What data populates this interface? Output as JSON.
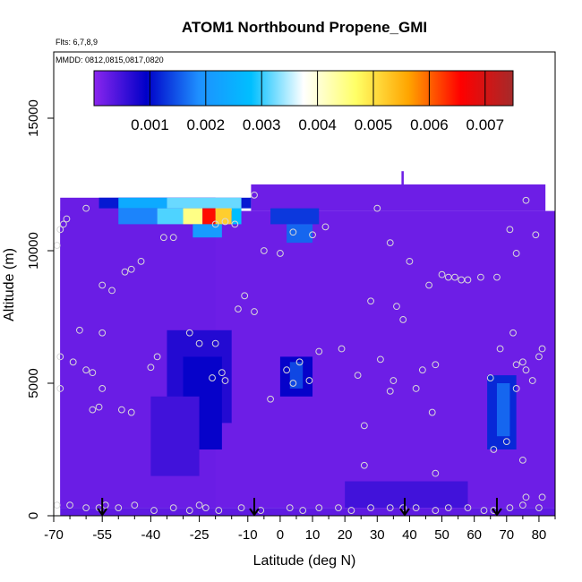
{
  "chart_data": {
    "type": "heatmap",
    "title": "ATOM1 Northbound Propene_GMI",
    "notes": [
      "Flts: 6,7,8,9",
      "MMDD: 0812,0815,0817,0820"
    ],
    "xlabel": "Latitude (deg N)",
    "ylabel": "Altitude (m)",
    "xlim": [
      -70,
      85
    ],
    "ylim": [
      0,
      17500
    ],
    "x_ticks": [
      -70,
      -55,
      -40,
      -25,
      -10,
      0,
      10,
      20,
      30,
      40,
      50,
      60,
      70,
      80
    ],
    "x_tick_labels": [
      "-70",
      "-55",
      "-40",
      "-25",
      "-10",
      "0",
      "10",
      "20",
      "30",
      "40",
      "50",
      "60",
      "70",
      "80"
    ],
    "x_minor_ticks": [
      -65,
      -60,
      -50,
      -45,
      -35,
      -30,
      -20,
      -15,
      -5,
      5,
      15,
      25,
      35,
      45,
      55,
      65,
      75,
      85
    ],
    "y_ticks": [
      0,
      5000,
      10000,
      15000
    ],
    "y_tick_labels": [
      "0",
      "5000",
      "10000",
      "15000"
    ],
    "colorbar": {
      "min": 0,
      "max": 0.0075,
      "ticks": [
        0.001,
        0.002,
        0.003,
        0.004,
        0.005,
        0.006,
        0.007
      ],
      "tick_labels": [
        "0.001",
        "0.002",
        "0.003",
        "0.004",
        "0.005",
        "0.006",
        "0.007"
      ],
      "colors": [
        "#8b26ee",
        "#0000c8",
        "#1e90ff",
        "#00bfff",
        "#ffffff",
        "#ffff66",
        "#ffa500",
        "#ff0000",
        "#a52a2a"
      ]
    },
    "background_value": 0.0002,
    "regions": [
      {
        "x": [
          -68,
          85
        ],
        "y": [
          300,
          11500
        ],
        "value": 0.0002
      },
      {
        "x": [
          -68,
          -20
        ],
        "y": [
          300,
          12000
        ],
        "value": 0.00022
      },
      {
        "x": [
          -9,
          82
        ],
        "y": [
          11500,
          12500
        ],
        "value": 0.0002
      },
      {
        "x": [
          37.5,
          38.2
        ],
        "y": [
          12500,
          13000
        ],
        "value": 0.0002
      },
      {
        "x": [
          82,
          84
        ],
        "y": [
          300,
          6500
        ],
        "value": 0.0002
      },
      {
        "x": [
          -56,
          -9
        ],
        "y": [
          11600,
          12000
        ],
        "value": 0.0011
      },
      {
        "x": [
          -50,
          -35
        ],
        "y": [
          11600,
          12000
        ],
        "value": 0.0024
      },
      {
        "x": [
          -35,
          -12
        ],
        "y": [
          11600,
          12000
        ],
        "value": 0.0032
      },
      {
        "x": [
          -50,
          -38
        ],
        "y": [
          11000,
          11600
        ],
        "value": 0.0018
      },
      {
        "x": [
          -38,
          -30
        ],
        "y": [
          11000,
          11600
        ],
        "value": 0.0031
      },
      {
        "x": [
          -30,
          -24
        ],
        "y": [
          11000,
          11600
        ],
        "value": 0.0045
      },
      {
        "x": [
          -24,
          -20
        ],
        "y": [
          11000,
          11600
        ],
        "value": 0.0065
      },
      {
        "x": [
          -20,
          -15
        ],
        "y": [
          11000,
          11600
        ],
        "value": 0.0052
      },
      {
        "x": [
          -15,
          -12
        ],
        "y": [
          11000,
          11600
        ],
        "value": 0.0028
      },
      {
        "x": [
          -27,
          -18
        ],
        "y": [
          10500,
          11000
        ],
        "value": 0.0021
      },
      {
        "x": [
          -3,
          12
        ],
        "y": [
          11000,
          11600
        ],
        "value": 0.0013
      },
      {
        "x": [
          2,
          10
        ],
        "y": [
          10300,
          11000
        ],
        "value": 0.0016
      },
      {
        "x": [
          -35,
          -15
        ],
        "y": [
          3500,
          7000
        ],
        "value": 0.0007
      },
      {
        "x": [
          -30,
          -18
        ],
        "y": [
          2500,
          6000
        ],
        "value": 0.0009
      },
      {
        "x": [
          -40,
          -25
        ],
        "y": [
          1500,
          4500
        ],
        "value": 0.0005
      },
      {
        "x": [
          0,
          10
        ],
        "y": [
          4500,
          6000
        ],
        "value": 0.0009
      },
      {
        "x": [
          3,
          7
        ],
        "y": [
          4800,
          5800
        ],
        "value": 0.0014
      },
      {
        "x": [
          64,
          73
        ],
        "y": [
          2500,
          5300
        ],
        "value": 0.0012
      },
      {
        "x": [
          67,
          71
        ],
        "y": [
          3000,
          5000
        ],
        "value": 0.0016
      },
      {
        "x": [
          20,
          58
        ],
        "y": [
          300,
          1300
        ],
        "value": 0.0005
      },
      {
        "x": [
          -68,
          85
        ],
        "y": [
          0,
          300
        ],
        "value": 0.0003
      }
    ],
    "points": [
      [
        -69,
        10200
      ],
      [
        -68,
        10800
      ],
      [
        -67,
        11000
      ],
      [
        -66,
        11200
      ],
      [
        -60,
        11600
      ],
      [
        -68,
        6000
      ],
      [
        -68,
        4800
      ],
      [
        -64,
        5800
      ],
      [
        -60,
        5500
      ],
      [
        -58,
        5400
      ],
      [
        -62,
        7000
      ],
      [
        -55,
        6900
      ],
      [
        -55,
        8700
      ],
      [
        -52,
        8500
      ],
      [
        -48,
        9200
      ],
      [
        -46,
        9300
      ],
      [
        -43,
        9600
      ],
      [
        -36,
        10500
      ],
      [
        -33,
        10500
      ],
      [
        -20,
        11000
      ],
      [
        -17,
        11100
      ],
      [
        -14,
        11000
      ],
      [
        -8,
        12100
      ],
      [
        -11,
        8300
      ],
      [
        -13,
        7800
      ],
      [
        -8,
        7700
      ],
      [
        -5,
        10000
      ],
      [
        0,
        9900
      ],
      [
        4,
        10700
      ],
      [
        10,
        10600
      ],
      [
        14,
        10900
      ],
      [
        -28,
        6900
      ],
      [
        -25,
        6500
      ],
      [
        -20,
        6500
      ],
      [
        -38,
        6000
      ],
      [
        -40,
        5600
      ],
      [
        -18,
        5400
      ],
      [
        -21,
        5200
      ],
      [
        -17,
        5100
      ],
      [
        -3,
        4400
      ],
      [
        2,
        5500
      ],
      [
        4,
        5000
      ],
      [
        6,
        5800
      ],
      [
        9,
        5100
      ],
      [
        12,
        6200
      ],
      [
        19,
        6300
      ],
      [
        24,
        5300
      ],
      [
        28,
        8100
      ],
      [
        30,
        11600
      ],
      [
        34,
        10300
      ],
      [
        36,
        7900
      ],
      [
        38,
        7400
      ],
      [
        40,
        9600
      ],
      [
        42,
        4800
      ],
      [
        44,
        5500
      ],
      [
        46,
        8700
      ],
      [
        50,
        9100
      ],
      [
        52,
        9000
      ],
      [
        54,
        9000
      ],
      [
        56,
        8900
      ],
      [
        58,
        8900
      ],
      [
        62,
        9000
      ],
      [
        67,
        9000
      ],
      [
        71,
        10800
      ],
      [
        73,
        9900
      ],
      [
        76,
        11900
      ],
      [
        79,
        10600
      ],
      [
        31,
        5900
      ],
      [
        34,
        4700
      ],
      [
        35,
        5100
      ],
      [
        48,
        5700
      ],
      [
        47,
        3900
      ],
      [
        48,
        1600
      ],
      [
        26,
        1900
      ],
      [
        26,
        3400
      ],
      [
        65,
        5200
      ],
      [
        68,
        6300
      ],
      [
        72,
        6900
      ],
      [
        73,
        5700
      ],
      [
        75,
        5800
      ],
      [
        76,
        5500
      ],
      [
        78,
        5100
      ],
      [
        80,
        6000
      ],
      [
        81,
        6300
      ],
      [
        73,
        4800
      ],
      [
        70,
        2800
      ],
      [
        66,
        2500
      ],
      [
        75,
        2100
      ],
      [
        76,
        700
      ],
      [
        81,
        700
      ],
      [
        -58,
        4000
      ],
      [
        -55,
        4800
      ],
      [
        -56,
        4100
      ],
      [
        -49,
        4000
      ],
      [
        -46,
        3900
      ],
      [
        -69,
        400
      ],
      [
        -65,
        400
      ],
      [
        -60,
        300
      ],
      [
        -56,
        300
      ],
      [
        -54,
        400
      ],
      [
        -50,
        300
      ],
      [
        -45,
        400
      ],
      [
        -39,
        200
      ],
      [
        -33,
        300
      ],
      [
        -28,
        200
      ],
      [
        -25,
        400
      ],
      [
        -23,
        300
      ],
      [
        -19,
        200
      ],
      [
        -12,
        300
      ],
      [
        -6,
        200
      ],
      [
        3,
        300
      ],
      [
        7,
        200
      ],
      [
        12,
        300
      ],
      [
        18,
        300
      ],
      [
        22,
        200
      ],
      [
        28,
        300
      ],
      [
        34,
        300
      ],
      [
        38,
        300
      ],
      [
        42,
        300
      ],
      [
        48,
        200
      ],
      [
        52,
        300
      ],
      [
        58,
        300
      ],
      [
        63,
        200
      ],
      [
        66,
        200
      ],
      [
        71,
        300
      ],
      [
        75,
        400
      ],
      [
        80,
        300
      ]
    ],
    "arrows_at_latitude": [
      -55,
      -8,
      38.5,
      67
    ],
    "point_color": "#d8d8d8"
  }
}
